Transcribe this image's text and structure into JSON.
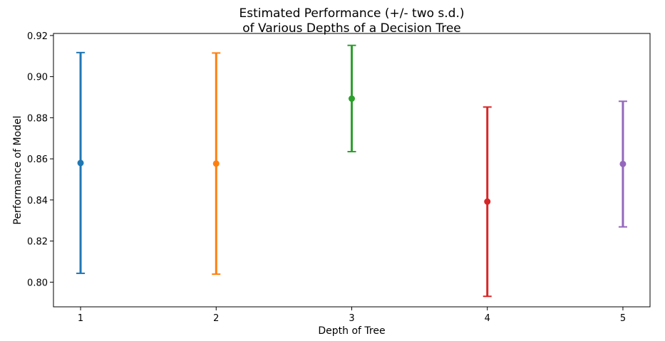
{
  "chart_data": {
    "type": "errorbar",
    "title": [
      "Estimated Performance (+/- two s.d.)",
      "of Various Depths of a Decision Tree"
    ],
    "xlabel": "Depth of Tree",
    "ylabel": "Performance of Model",
    "ylim": [
      0.788,
      0.921
    ],
    "xlim": [
      0.8,
      5.2
    ],
    "yticks": [
      "0.80",
      "0.82",
      "0.84",
      "0.86",
      "0.88",
      "0.90",
      "0.92"
    ],
    "xticks": [
      "1",
      "2",
      "3",
      "4",
      "5"
    ],
    "grid": false,
    "points": [
      {
        "x": 1,
        "mean": 0.858,
        "lower": 0.8043,
        "upper": 0.9117,
        "color": "#1f77b4"
      },
      {
        "x": 2,
        "mean": 0.8577,
        "lower": 0.8039,
        "upper": 0.9115,
        "color": "#ff7f0e"
      },
      {
        "x": 3,
        "mean": 0.8893,
        "lower": 0.8635,
        "upper": 0.9152,
        "color": "#2ca02c"
      },
      {
        "x": 4,
        "mean": 0.8392,
        "lower": 0.7931,
        "upper": 0.8852,
        "color": "#d62728"
      },
      {
        "x": 5,
        "mean": 0.8575,
        "lower": 0.8269,
        "upper": 0.888,
        "color": "#9467bd"
      }
    ]
  }
}
